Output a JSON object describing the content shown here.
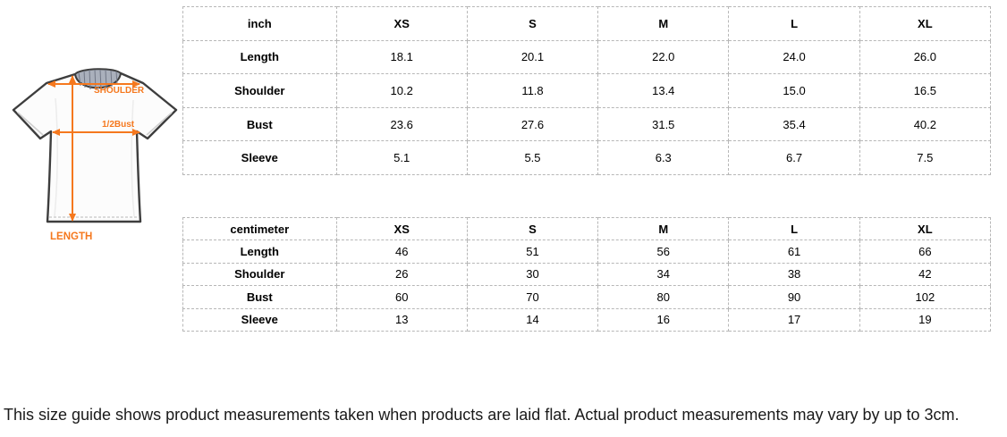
{
  "diagram": {
    "shoulder_label": "SHOULDER",
    "bust_label": "1/2Bust",
    "length_label": "LENGTH",
    "accent_color": "#f5781e",
    "outline_color": "#3d3d3d",
    "collar_color": "#aab0bc"
  },
  "tables": [
    {
      "unit": "inch",
      "sizes": [
        "XS",
        "S",
        "M",
        "L",
        "XL"
      ],
      "rows": [
        {
          "label": "Length",
          "values": [
            "18.1",
            "20.1",
            "22.0",
            "24.0",
            "26.0"
          ]
        },
        {
          "label": "Shoulder",
          "values": [
            "10.2",
            "11.8",
            "13.4",
            "15.0",
            "16.5"
          ]
        },
        {
          "label": "Bust",
          "values": [
            "23.6",
            "27.6",
            "31.5",
            "35.4",
            "40.2"
          ]
        },
        {
          "label": "Sleeve",
          "values": [
            "5.1",
            "5.5",
            "6.3",
            "6.7",
            "7.5"
          ]
        }
      ]
    },
    {
      "unit": "centimeter",
      "sizes": [
        "XS",
        "S",
        "M",
        "L",
        "XL"
      ],
      "rows": [
        {
          "label": "Length",
          "values": [
            "46",
            "51",
            "56",
            "61",
            "66"
          ]
        },
        {
          "label": "Shoulder",
          "values": [
            "26",
            "30",
            "34",
            "38",
            "42"
          ]
        },
        {
          "label": "Bust",
          "values": [
            "60",
            "70",
            "80",
            "90",
            "102"
          ]
        },
        {
          "label": "Sleeve",
          "values": [
            "13",
            "14",
            "16",
            "17",
            "19"
          ]
        }
      ]
    }
  ],
  "note": "This size guide shows product measurements taken when products are laid flat. Actual product measurements may vary by up to 3cm."
}
